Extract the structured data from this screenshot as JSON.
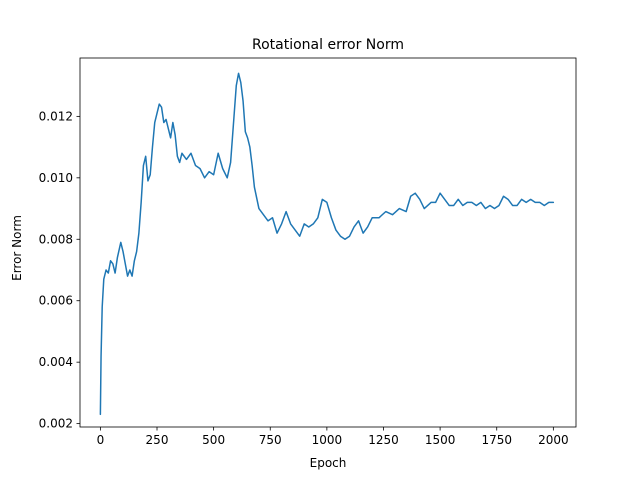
{
  "chart_data": {
    "type": "line",
    "title": "Rotational error Norm",
    "xlabel": "Epoch",
    "ylabel": "Error Norm",
    "xlim": [
      -90,
      2100
    ],
    "ylim": [
      0.00189,
      0.0139
    ],
    "xticks": [
      0,
      250,
      500,
      750,
      1000,
      1250,
      1500,
      1750,
      2000
    ],
    "xtick_labels": [
      "0",
      "250",
      "500",
      "750",
      "1000",
      "1250",
      "1500",
      "1750",
      "2000"
    ],
    "yticks": [
      0.002,
      0.004,
      0.006,
      0.008,
      0.01,
      0.012
    ],
    "ytick_labels": [
      "0.002",
      "0.004",
      "0.006",
      "0.008",
      "0.010",
      "0.012"
    ],
    "grid": false,
    "series": [
      {
        "color": "#1f77b4",
        "x": [
          0,
          3,
          8,
          15,
          25,
          35,
          45,
          55,
          65,
          75,
          90,
          100,
          110,
          120,
          130,
          140,
          150,
          160,
          170,
          180,
          190,
          200,
          210,
          220,
          230,
          240,
          250,
          260,
          270,
          280,
          290,
          300,
          310,
          320,
          330,
          340,
          350,
          360,
          380,
          400,
          420,
          440,
          460,
          480,
          500,
          520,
          540,
          560,
          575,
          590,
          600,
          610,
          620,
          630,
          640,
          650,
          660,
          670,
          680,
          700,
          720,
          740,
          760,
          780,
          800,
          820,
          840,
          860,
          880,
          900,
          920,
          940,
          960,
          980,
          1000,
          1020,
          1040,
          1060,
          1080,
          1100,
          1120,
          1140,
          1160,
          1180,
          1200,
          1230,
          1260,
          1290,
          1320,
          1350,
          1370,
          1390,
          1410,
          1430,
          1460,
          1480,
          1500,
          1520,
          1540,
          1560,
          1580,
          1600,
          1620,
          1640,
          1660,
          1680,
          1700,
          1720,
          1740,
          1760,
          1780,
          1800,
          1820,
          1840,
          1860,
          1880,
          1900,
          1920,
          1940,
          1960,
          1980,
          2000
        ],
        "y": [
          0.0023,
          0.0042,
          0.0058,
          0.0067,
          0.007,
          0.0069,
          0.0073,
          0.0072,
          0.0069,
          0.0074,
          0.0079,
          0.0076,
          0.0072,
          0.0068,
          0.007,
          0.0068,
          0.0073,
          0.0076,
          0.0082,
          0.0092,
          0.0104,
          0.0107,
          0.0099,
          0.0101,
          0.011,
          0.0118,
          0.0121,
          0.0124,
          0.0123,
          0.0118,
          0.0119,
          0.0116,
          0.0113,
          0.0118,
          0.0114,
          0.0107,
          0.0105,
          0.0108,
          0.0106,
          0.0108,
          0.0104,
          0.0103,
          0.01,
          0.0102,
          0.0101,
          0.0108,
          0.0103,
          0.01,
          0.0105,
          0.012,
          0.013,
          0.0134,
          0.0131,
          0.0125,
          0.0115,
          0.0113,
          0.011,
          0.0104,
          0.0097,
          0.009,
          0.0088,
          0.0086,
          0.0087,
          0.0082,
          0.0085,
          0.0089,
          0.0085,
          0.0083,
          0.0081,
          0.0085,
          0.0084,
          0.0085,
          0.0087,
          0.0093,
          0.0092,
          0.0087,
          0.0083,
          0.0081,
          0.008,
          0.0081,
          0.0084,
          0.0086,
          0.0082,
          0.0084,
          0.0087,
          0.0087,
          0.0089,
          0.0088,
          0.009,
          0.0089,
          0.0094,
          0.0095,
          0.0093,
          0.009,
          0.0092,
          0.0092,
          0.0095,
          0.0093,
          0.0091,
          0.0091,
          0.0093,
          0.0091,
          0.0092,
          0.0092,
          0.0091,
          0.0092,
          0.009,
          0.0091,
          0.009,
          0.0091,
          0.0094,
          0.0093,
          0.0091,
          0.0091,
          0.0093,
          0.0092,
          0.0093,
          0.0092,
          0.0092,
          0.0091,
          0.0092,
          0.0092
        ]
      }
    ]
  }
}
